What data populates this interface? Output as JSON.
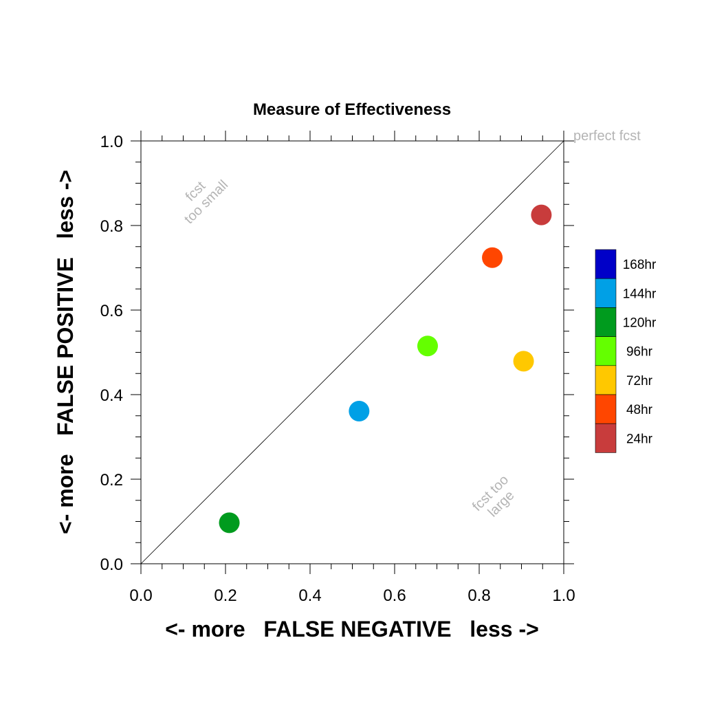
{
  "chart_data": {
    "type": "scatter",
    "title": "Measure of Effectiveness",
    "xlabel": "<- more   FALSE NEGATIVE   less ->",
    "ylabel": "<- more   FALSE POSITIVE   less ->",
    "xlim": [
      0.0,
      1.0
    ],
    "ylim": [
      0.0,
      1.0
    ],
    "xticks": [
      "0.0",
      "0.2",
      "0.4",
      "0.6",
      "0.8",
      "1.0"
    ],
    "yticks": [
      "0.0",
      "0.2",
      "0.4",
      "0.6",
      "0.8",
      "1.0"
    ],
    "grid": false,
    "diagonal_line": true,
    "annotations": {
      "perfect": "perfect fcst",
      "small_line1": "fcst",
      "small_line2": "too small",
      "large_line1": "fcst too",
      "large_line2": "large"
    },
    "legend": {
      "placement": "right",
      "entries": [
        {
          "label": "168hr",
          "color": "#0000c8"
        },
        {
          "label": "144hr",
          "color": "#00a0e6"
        },
        {
          "label": "120hr",
          "color": "#009b1e"
        },
        {
          "label": "96hr",
          "color": "#64ff00"
        },
        {
          "label": "72hr",
          "color": "#ffc800"
        },
        {
          "label": "48hr",
          "color": "#ff4600"
        },
        {
          "label": "24hr",
          "color": "#c83c3c"
        }
      ]
    },
    "points": [
      {
        "series": "24hr",
        "x": 0.947,
        "y": 0.825,
        "color": "#c83c3c"
      },
      {
        "series": "48hr",
        "x": 0.831,
        "y": 0.724,
        "color": "#ff4600"
      },
      {
        "series": "72hr",
        "x": 0.905,
        "y": 0.479,
        "color": "#ffc800"
      },
      {
        "series": "96hr",
        "x": 0.678,
        "y": 0.515,
        "color": "#64ff00"
      },
      {
        "series": "120hr",
        "x": 0.209,
        "y": 0.097,
        "color": "#009b1e"
      },
      {
        "series": "144hr",
        "x": 0.516,
        "y": 0.361,
        "color": "#00a0e6"
      }
    ]
  }
}
